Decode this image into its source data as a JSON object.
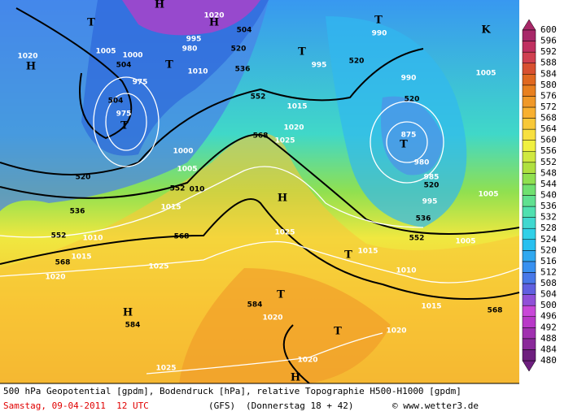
{
  "map_labels": [
    "H",
    "1020",
    "H",
    "504",
    "T",
    "1005",
    "504",
    "1000",
    "995",
    "980",
    "520",
    "T",
    "1010",
    "536",
    "1020",
    "H",
    "975",
    "T",
    "995",
    "520",
    "T",
    "990",
    "K",
    "1005",
    "990",
    "520",
    "504",
    "975",
    "T",
    "552",
    "1015",
    "1020",
    "568",
    "1025",
    "875",
    "T",
    "980",
    "985",
    "520",
    "995",
    "536",
    "1000",
    "1005",
    "552",
    "010",
    "520",
    "536",
    "552",
    "1010",
    "1015",
    "568",
    "1025",
    "H",
    "1005",
    "1005",
    "552",
    "1015",
    "T",
    "1015",
    "568",
    "1020",
    "1025",
    "1010",
    "T",
    "1015",
    "584",
    "568",
    "H",
    "584",
    "1020",
    "T",
    "1020",
    "1020",
    "1025",
    "H"
  ],
  "legend": {
    "values": [
      480,
      484,
      488,
      492,
      496,
      500,
      504,
      508,
      512,
      516,
      520,
      524,
      528,
      532,
      536,
      540,
      544,
      548,
      552,
      556,
      560,
      564,
      568,
      572,
      576,
      580,
      584,
      588,
      592,
      596,
      600
    ],
    "colors": [
      "#6e1f7f",
      "#8a2a9a",
      "#a030b0",
      "#b838c8",
      "#c848d8",
      "#9050d8",
      "#6060e0",
      "#4878e8",
      "#3890f0",
      "#30a8f0",
      "#28c0f0",
      "#30d0e8",
      "#40d8d0",
      "#50e0b0",
      "#60e090",
      "#70e070",
      "#90e050",
      "#b0e040",
      "#d0e840",
      "#f0f040",
      "#f8e040",
      "#f8c838",
      "#f8b030",
      "#f09828",
      "#e88020",
      "#e06820",
      "#d85030",
      "#d04050",
      "#c03060",
      "#a82868"
    ]
  },
  "footer": {
    "description": "500 hPa Geopotential [gpdm], Bodendruck [hPa], relative Topographie H500-H1000 [gpdm]",
    "date": "Samstag, 09-04-2011  12 UTC",
    "model": "(GFS)",
    "run": "(Donnerstag 18 + 42)",
    "copyright": "© www.wetter3.de"
  }
}
